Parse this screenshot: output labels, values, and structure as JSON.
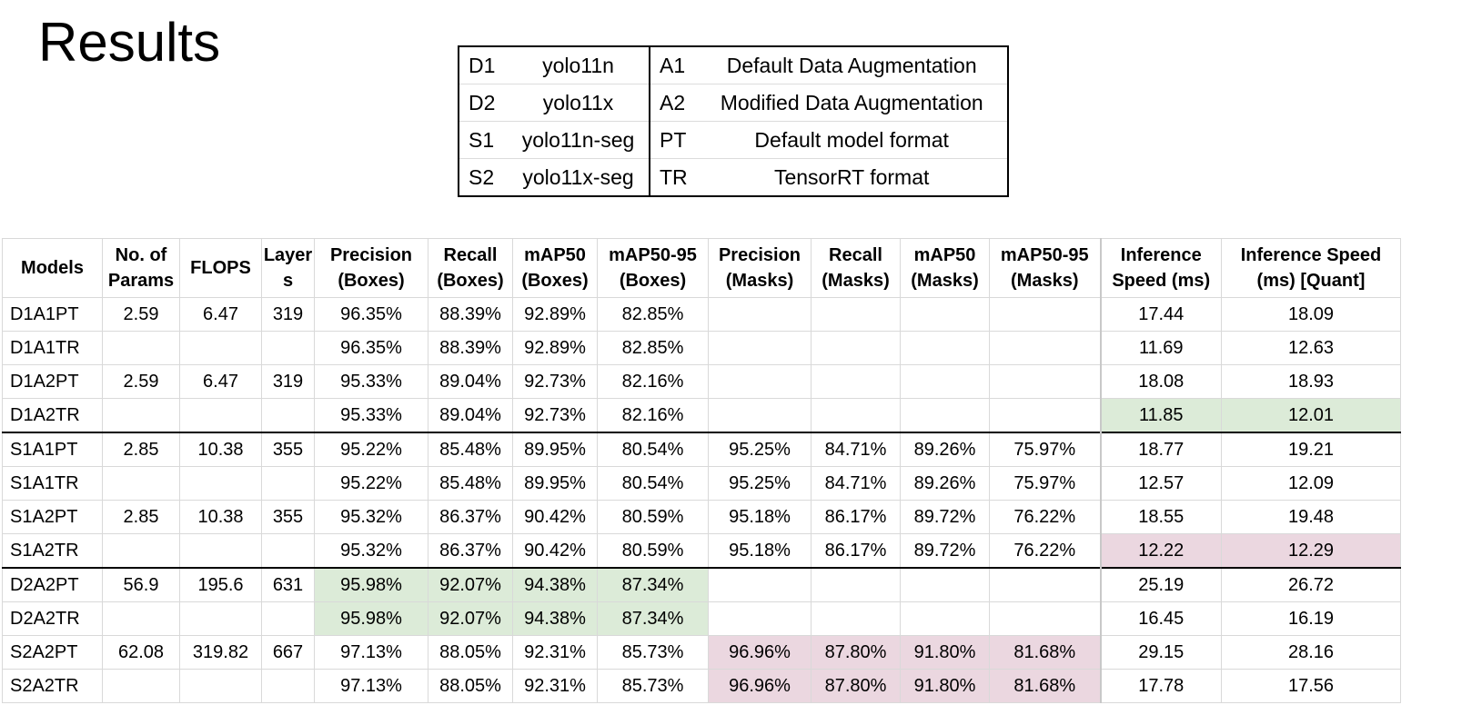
{
  "title": "Results",
  "legend": [
    {
      "code1": "D1",
      "name1": "yolo11n",
      "code2": "A1",
      "name2": "Default Data Augmentation"
    },
    {
      "code1": "D2",
      "name1": "yolo11x",
      "code2": "A2",
      "name2": "Modified Data Augmentation"
    },
    {
      "code1": "S1",
      "name1": "yolo11n-seg",
      "code2": "PT",
      "name2": "Default model format"
    },
    {
      "code1": "S2",
      "name1": "yolo11x-seg",
      "code2": "TR",
      "name2": "TensorRT format"
    }
  ],
  "columns": [
    [
      "Models"
    ],
    [
      "No. of",
      "Params"
    ],
    [
      "FLOPS"
    ],
    [
      "Layer",
      "s"
    ],
    [
      "Precision",
      "(Boxes)"
    ],
    [
      "Recall",
      "(Boxes)"
    ],
    [
      "mAP50",
      "(Boxes)"
    ],
    [
      "mAP50-95",
      "(Boxes)"
    ],
    [
      "Precision",
      "(Masks)"
    ],
    [
      "Recall",
      "(Masks)"
    ],
    [
      "mAP50",
      "(Masks)"
    ],
    [
      "mAP50-95",
      "(Masks)"
    ],
    [
      "Inference",
      "Speed (ms)"
    ],
    [
      "Inference Speed",
      "(ms) [Quant]"
    ]
  ],
  "rows": [
    [
      "D1A1PT",
      "2.59",
      "6.47",
      "319",
      "96.35%",
      "88.39%",
      "92.89%",
      "82.85%",
      "",
      "",
      "",
      "",
      "17.44",
      "18.09"
    ],
    [
      "D1A1TR",
      "",
      "",
      "",
      "96.35%",
      "88.39%",
      "92.89%",
      "82.85%",
      "",
      "",
      "",
      "",
      "11.69",
      "12.63"
    ],
    [
      "D1A2PT",
      "2.59",
      "6.47",
      "319",
      "95.33%",
      "89.04%",
      "92.73%",
      "82.16%",
      "",
      "",
      "",
      "",
      "18.08",
      "18.93"
    ],
    [
      "D1A2TR",
      "",
      "",
      "",
      "95.33%",
      "89.04%",
      "92.73%",
      "82.16%",
      "",
      "",
      "",
      "",
      "11.85",
      "12.01"
    ],
    [
      "S1A1PT",
      "2.85",
      "10.38",
      "355",
      "95.22%",
      "85.48%",
      "89.95%",
      "80.54%",
      "95.25%",
      "84.71%",
      "89.26%",
      "75.97%",
      "18.77",
      "19.21"
    ],
    [
      "S1A1TR",
      "",
      "",
      "",
      "95.22%",
      "85.48%",
      "89.95%",
      "80.54%",
      "95.25%",
      "84.71%",
      "89.26%",
      "75.97%",
      "12.57",
      "12.09"
    ],
    [
      "S1A2PT",
      "2.85",
      "10.38",
      "355",
      "95.32%",
      "86.37%",
      "90.42%",
      "80.59%",
      "95.18%",
      "86.17%",
      "89.72%",
      "76.22%",
      "18.55",
      "19.48"
    ],
    [
      "S1A2TR",
      "",
      "",
      "",
      "95.32%",
      "86.37%",
      "90.42%",
      "80.59%",
      "95.18%",
      "86.17%",
      "89.72%",
      "76.22%",
      "12.22",
      "12.29"
    ],
    [
      "D2A2PT",
      "56.9",
      "195.6",
      "631",
      "95.98%",
      "92.07%",
      "94.38%",
      "87.34%",
      "",
      "",
      "",
      "",
      "25.19",
      "26.72"
    ],
    [
      "D2A2TR",
      "",
      "",
      "",
      "95.98%",
      "92.07%",
      "94.38%",
      "87.34%",
      "",
      "",
      "",
      "",
      "16.45",
      "16.19"
    ],
    [
      "S2A2PT",
      "62.08",
      "319.82",
      "667",
      "97.13%",
      "88.05%",
      "92.31%",
      "85.73%",
      "96.96%",
      "87.80%",
      "91.80%",
      "81.68%",
      "29.15",
      "28.16"
    ],
    [
      "S2A2TR",
      "",
      "",
      "",
      "97.13%",
      "88.05%",
      "92.31%",
      "85.73%",
      "96.96%",
      "87.80%",
      "91.80%",
      "81.68%",
      "17.78",
      "17.56"
    ]
  ],
  "group_starts": [
    4,
    8
  ],
  "highlight_colors": {
    "green": "#dcebd8",
    "pink": "#ebd7e0"
  },
  "highlights": [
    {
      "row": 3,
      "cols": [
        12,
        13
      ],
      "color": "green"
    },
    {
      "row": 7,
      "cols": [
        12,
        13
      ],
      "color": "pink"
    },
    {
      "row": 8,
      "cols": [
        4,
        5,
        6,
        7
      ],
      "color": "green"
    },
    {
      "row": 9,
      "cols": [
        4,
        5,
        6,
        7
      ],
      "color": "green"
    },
    {
      "row": 10,
      "cols": [
        8,
        9,
        10,
        11
      ],
      "color": "pink"
    },
    {
      "row": 11,
      "cols": [
        8,
        9,
        10,
        11
      ],
      "color": "pink"
    }
  ]
}
